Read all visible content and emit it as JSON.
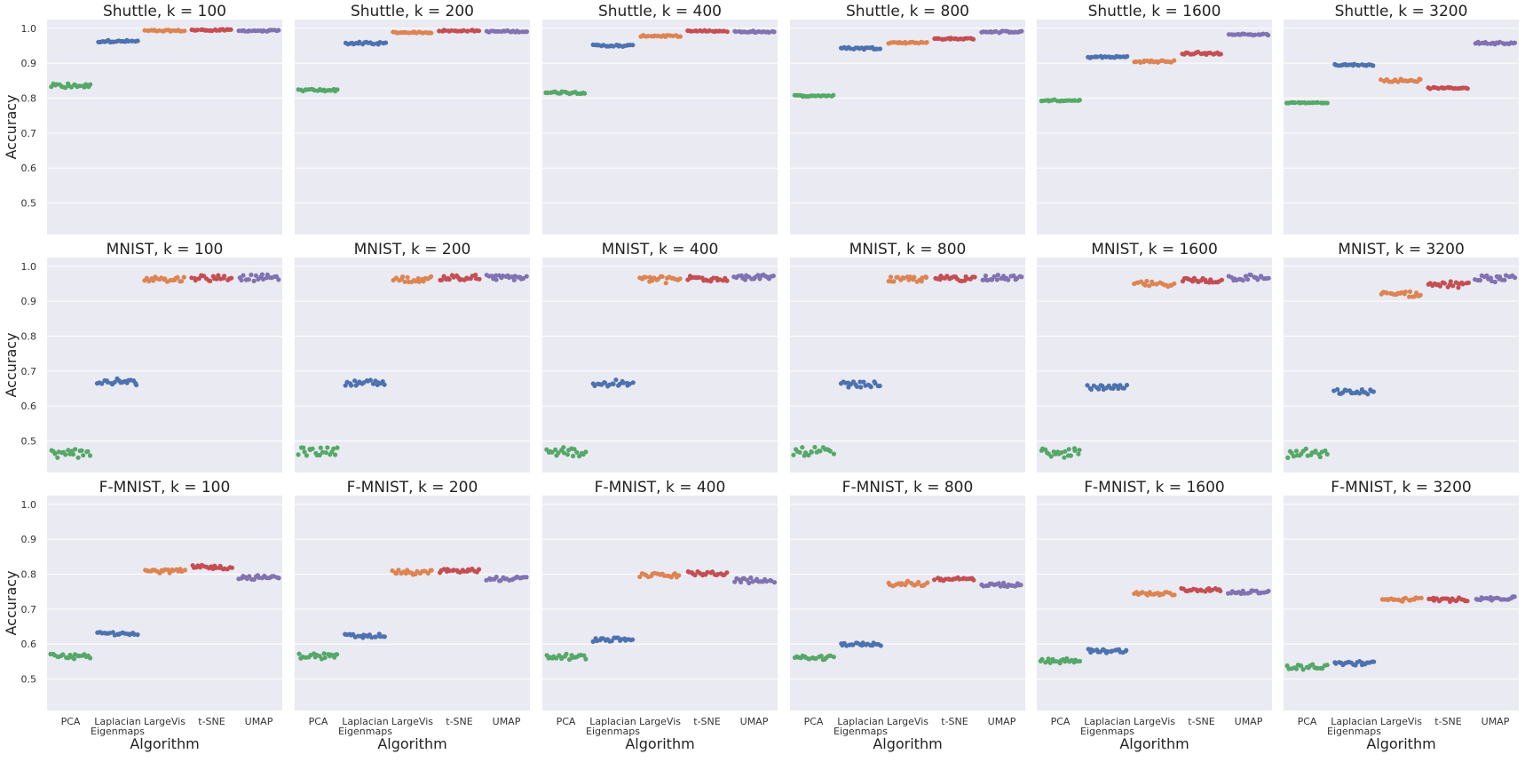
{
  "figure": {
    "ylabel": "Accuracy",
    "xlabel": "Algorithm",
    "categories": [
      "PCA",
      "Laplacian\nEigenmaps",
      "LargeVis",
      "t-SNE",
      "UMAP"
    ],
    "category_colors": [
      "#55a868",
      "#4c72b0",
      "#dd8452",
      "#c44e52",
      "#8172b2"
    ],
    "background_color": "#eaeaf2",
    "grid_color": "#ffffff",
    "yticks": [
      0.5,
      0.6,
      0.7,
      0.8,
      0.9,
      1.0
    ],
    "ylim": [
      0.41,
      1.025
    ]
  },
  "chart_data": [
    {
      "type": "swarm",
      "title": "Shuttle, k = 100",
      "categories": [
        "PCA",
        "Laplacian Eigenmaps",
        "LargeVis",
        "t-SNE",
        "UMAP"
      ],
      "center": [
        0.835,
        0.963,
        0.993,
        0.995,
        0.993
      ],
      "spread": [
        0.006,
        0.003,
        0.002,
        0.002,
        0.002
      ],
      "points_per_category": 20
    },
    {
      "type": "swarm",
      "title": "Shuttle, k = 200",
      "categories": [
        "PCA",
        "Laplacian Eigenmaps",
        "LargeVis",
        "t-SNE",
        "UMAP"
      ],
      "center": [
        0.823,
        0.957,
        0.988,
        0.993,
        0.991
      ],
      "spread": [
        0.003,
        0.003,
        0.002,
        0.002,
        0.002
      ],
      "points_per_category": 20
    },
    {
      "type": "swarm",
      "title": "Shuttle, k = 400",
      "categories": [
        "PCA",
        "Laplacian Eigenmaps",
        "LargeVis",
        "t-SNE",
        "UMAP"
      ],
      "center": [
        0.816,
        0.95,
        0.978,
        0.992,
        0.99
      ],
      "spread": [
        0.003,
        0.003,
        0.002,
        0.002,
        0.002
      ],
      "points_per_category": 20
    },
    {
      "type": "swarm",
      "title": "Shuttle, k = 800",
      "categories": [
        "PCA",
        "Laplacian Eigenmaps",
        "LargeVis",
        "t-SNE",
        "UMAP"
      ],
      "center": [
        0.807,
        0.943,
        0.959,
        0.97,
        0.99
      ],
      "spread": [
        0.002,
        0.003,
        0.002,
        0.002,
        0.002
      ],
      "points_per_category": 20
    },
    {
      "type": "swarm",
      "title": "Shuttle, k = 1600",
      "categories": [
        "PCA",
        "Laplacian Eigenmaps",
        "LargeVis",
        "t-SNE",
        "UMAP"
      ],
      "center": [
        0.793,
        0.918,
        0.905,
        0.928,
        0.982
      ],
      "spread": [
        0.002,
        0.003,
        0.003,
        0.003,
        0.002
      ],
      "points_per_category": 20
    },
    {
      "type": "swarm",
      "title": "Shuttle, k = 3200",
      "categories": [
        "PCA",
        "Laplacian Eigenmaps",
        "LargeVis",
        "t-SNE",
        "UMAP"
      ],
      "center": [
        0.787,
        0.895,
        0.851,
        0.829,
        0.958
      ],
      "spread": [
        0.001,
        0.002,
        0.004,
        0.002,
        0.003
      ],
      "points_per_category": 20
    },
    {
      "type": "swarm",
      "title": "MNIST, k = 100",
      "categories": [
        "PCA",
        "Laplacian Eigenmaps",
        "LargeVis",
        "t-SNE",
        "UMAP"
      ],
      "center": [
        0.464,
        0.668,
        0.963,
        0.968,
        0.968
      ],
      "spread": [
        0.012,
        0.008,
        0.008,
        0.008,
        0.008
      ],
      "points_per_category": 20
    },
    {
      "type": "swarm",
      "title": "MNIST, k = 200",
      "categories": [
        "PCA",
        "Laplacian Eigenmaps",
        "LargeVis",
        "t-SNE",
        "UMAP"
      ],
      "center": [
        0.47,
        0.667,
        0.963,
        0.968,
        0.968
      ],
      "spread": [
        0.012,
        0.008,
        0.008,
        0.008,
        0.008
      ],
      "points_per_category": 20
    },
    {
      "type": "swarm",
      "title": "MNIST, k = 400",
      "categories": [
        "PCA",
        "Laplacian Eigenmaps",
        "LargeVis",
        "t-SNE",
        "UMAP"
      ],
      "center": [
        0.468,
        0.664,
        0.963,
        0.966,
        0.968
      ],
      "spread": [
        0.012,
        0.008,
        0.008,
        0.008,
        0.008
      ],
      "points_per_category": 20
    },
    {
      "type": "swarm",
      "title": "MNIST, k = 800",
      "categories": [
        "PCA",
        "Laplacian Eigenmaps",
        "LargeVis",
        "t-SNE",
        "UMAP"
      ],
      "center": [
        0.47,
        0.662,
        0.963,
        0.965,
        0.968
      ],
      "spread": [
        0.012,
        0.008,
        0.008,
        0.008,
        0.008
      ],
      "points_per_category": 20
    },
    {
      "type": "swarm",
      "title": "MNIST, k = 1600",
      "categories": [
        "PCA",
        "Laplacian Eigenmaps",
        "LargeVis",
        "t-SNE",
        "UMAP"
      ],
      "center": [
        0.467,
        0.653,
        0.95,
        0.96,
        0.967
      ],
      "spread": [
        0.012,
        0.007,
        0.008,
        0.008,
        0.008
      ],
      "points_per_category": 20
    },
    {
      "type": "swarm",
      "title": "MNIST, k = 3200",
      "categories": [
        "PCA",
        "Laplacian Eigenmaps",
        "LargeVis",
        "t-SNE",
        "UMAP"
      ],
      "center": [
        0.462,
        0.641,
        0.92,
        0.947,
        0.966
      ],
      "spread": [
        0.012,
        0.007,
        0.008,
        0.008,
        0.008
      ],
      "points_per_category": 20
    },
    {
      "type": "swarm",
      "title": "F-MNIST, k = 100",
      "categories": [
        "PCA",
        "Laplacian Eigenmaps",
        "LargeVis",
        "t-SNE",
        "UMAP"
      ],
      "center": [
        0.564,
        0.631,
        0.809,
        0.82,
        0.791
      ],
      "spread": [
        0.008,
        0.004,
        0.006,
        0.006,
        0.006
      ],
      "points_per_category": 20
    },
    {
      "type": "swarm",
      "title": "F-MNIST, k = 200",
      "categories": [
        "PCA",
        "Laplacian Eigenmaps",
        "LargeVis",
        "t-SNE",
        "UMAP"
      ],
      "center": [
        0.566,
        0.624,
        0.806,
        0.81,
        0.787
      ],
      "spread": [
        0.007,
        0.005,
        0.006,
        0.006,
        0.006
      ],
      "points_per_category": 20
    },
    {
      "type": "swarm",
      "title": "F-MNIST, k = 400",
      "categories": [
        "PCA",
        "Laplacian Eigenmaps",
        "LargeVis",
        "t-SNE",
        "UMAP"
      ],
      "center": [
        0.563,
        0.612,
        0.797,
        0.802,
        0.782
      ],
      "spread": [
        0.007,
        0.005,
        0.006,
        0.006,
        0.006
      ],
      "points_per_category": 20
    },
    {
      "type": "swarm",
      "title": "F-MNIST, k = 800",
      "categories": [
        "PCA",
        "Laplacian Eigenmaps",
        "LargeVis",
        "t-SNE",
        "UMAP"
      ],
      "center": [
        0.56,
        0.6,
        0.772,
        0.786,
        0.768
      ],
      "spread": [
        0.007,
        0.005,
        0.006,
        0.005,
        0.006
      ],
      "points_per_category": 20
    },
    {
      "type": "swarm",
      "title": "F-MNIST, k = 1600",
      "categories": [
        "PCA",
        "Laplacian Eigenmaps",
        "LargeVis",
        "t-SNE",
        "UMAP"
      ],
      "center": [
        0.552,
        0.581,
        0.744,
        0.755,
        0.749
      ],
      "spread": [
        0.007,
        0.005,
        0.006,
        0.005,
        0.005
      ],
      "points_per_category": 20
    },
    {
      "type": "swarm",
      "title": "F-MNIST, k = 3200",
      "categories": [
        "PCA",
        "Laplacian Eigenmaps",
        "LargeVis",
        "t-SNE",
        "UMAP"
      ],
      "center": [
        0.535,
        0.545,
        0.728,
        0.728,
        0.731
      ],
      "spread": [
        0.006,
        0.005,
        0.005,
        0.005,
        0.005
      ],
      "points_per_category": 20
    }
  ]
}
